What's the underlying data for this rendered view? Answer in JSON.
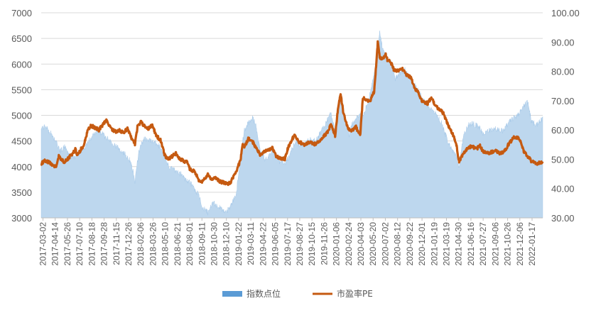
{
  "chart_data": {
    "type": "area-line",
    "legend": [
      {
        "name": "指数点位",
        "color": "#5b9bd5",
        "kind": "area"
      },
      {
        "name": "市盈率PE",
        "color": "#c55a11",
        "kind": "line"
      }
    ],
    "legend_position": "bottom",
    "grid": "horizontal",
    "y_left": {
      "min": 3000,
      "max": 7000,
      "step": 500,
      "ticks": [
        "3000",
        "3500",
        "4000",
        "4500",
        "5000",
        "5500",
        "6000",
        "6500",
        "7000"
      ]
    },
    "y_right": {
      "min": 30,
      "max": 100,
      "step": 10,
      "ticks": [
        "30.00",
        "40.00",
        "50.00",
        "60.00",
        "70.00",
        "80.00",
        "90.00",
        "100.00"
      ]
    },
    "x_start": "2017-03-02",
    "x_end": "2022-02-28",
    "x_labels": [
      "2017-03-02",
      "2017-04-14",
      "2017-05-26",
      "2017-07-10",
      "2017-08-18",
      "2017-09-28",
      "2017-11-15",
      "2017-12-26",
      "2018-02-06",
      "2018-03-26",
      "2018-05-10",
      "2018-06-21",
      "2018-08-01",
      "2018-09-11",
      "2018-10-30",
      "2018-12-10",
      "2019-01-22",
      "2019-03-11",
      "2019-04-22",
      "2019-06-05",
      "2019-07-17",
      "2019-08-27",
      "2019-10-15",
      "2019-11-26",
      "2020-01-06",
      "2020-02-24",
      "2020-04-03",
      "2020-05-20",
      "2020-07-02",
      "2020-08-12",
      "2020-09-22",
      "2020-12-01",
      "2021-01-19",
      "2021-03-19",
      "2021-04-30",
      "2021-06-16",
      "2021-07-27",
      "2021-09-06",
      "2021-10-26",
      "2021-12-06",
      "2022-01-17"
    ],
    "index_series": [
      [
        "2017-03-02",
        4750
      ],
      [
        "2017-03-20",
        4780
      ],
      [
        "2017-04-10",
        4620
      ],
      [
        "2017-04-25",
        4480
      ],
      [
        "2017-05-10",
        4300
      ],
      [
        "2017-05-26",
        4380
      ],
      [
        "2017-06-15",
        4200
      ],
      [
        "2017-07-05",
        4180
      ],
      [
        "2017-07-20",
        4300
      ],
      [
        "2017-08-05",
        4350
      ],
      [
        "2017-08-20",
        4480
      ],
      [
        "2017-09-05",
        4620
      ],
      [
        "2017-09-20",
        4700
      ],
      [
        "2017-10-10",
        4650
      ],
      [
        "2017-10-25",
        4560
      ],
      [
        "2017-11-10",
        4500
      ],
      [
        "2017-11-25",
        4420
      ],
      [
        "2017-12-10",
        4350
      ],
      [
        "2017-12-26",
        4280
      ],
      [
        "2018-01-10",
        4200
      ],
      [
        "2018-01-25",
        4050
      ],
      [
        "2018-02-06",
        3700
      ],
      [
        "2018-02-20",
        4300
      ],
      [
        "2018-03-10",
        4550
      ],
      [
        "2018-03-26",
        4520
      ],
      [
        "2018-04-15",
        4480
      ],
      [
        "2018-05-10",
        4380
      ],
      [
        "2018-05-25",
        4200
      ],
      [
        "2018-06-10",
        4000
      ],
      [
        "2018-06-21",
        3950
      ],
      [
        "2018-07-10",
        3900
      ],
      [
        "2018-07-25",
        3850
      ],
      [
        "2018-08-10",
        3750
      ],
      [
        "2018-08-25",
        3700
      ],
      [
        "2018-09-11",
        3550
      ],
      [
        "2018-09-25",
        3450
      ],
      [
        "2018-10-10",
        3200
      ],
      [
        "2018-10-30",
        3100
      ],
      [
        "2018-11-15",
        3300
      ],
      [
        "2018-11-28",
        3250
      ],
      [
        "2018-12-10",
        3200
      ],
      [
        "2018-12-25",
        3150
      ],
      [
        "2019-01-05",
        3120
      ],
      [
        "2019-01-22",
        3250
      ],
      [
        "2019-02-10",
        3500
      ],
      [
        "2019-02-25",
        4200
      ],
      [
        "2019-03-11",
        4700
      ],
      [
        "2019-03-25",
        4850
      ],
      [
        "2019-04-10",
        4950
      ],
      [
        "2019-04-22",
        4800
      ],
      [
        "2019-05-08",
        4300
      ],
      [
        "2019-05-25",
        4150
      ],
      [
        "2019-06-05",
        4200
      ],
      [
        "2019-06-20",
        4300
      ],
      [
        "2019-07-05",
        4250
      ],
      [
        "2019-07-17",
        4100
      ],
      [
        "2019-08-05",
        4050
      ],
      [
        "2019-08-20",
        4200
      ],
      [
        "2019-08-27",
        4300
      ],
      [
        "2019-09-15",
        4500
      ],
      [
        "2019-10-01",
        4400
      ],
      [
        "2019-10-15",
        4450
      ],
      [
        "2019-11-05",
        4550
      ],
      [
        "2019-11-26",
        4500
      ],
      [
        "2019-12-15",
        4700
      ],
      [
        "2020-01-06",
        4900
      ],
      [
        "2020-01-20",
        5050
      ],
      [
        "2020-02-04",
        4700
      ],
      [
        "2020-02-24",
        5300
      ],
      [
        "2020-03-10",
        5000
      ],
      [
        "2020-03-25",
        4600
      ],
      [
        "2020-04-03",
        4800
      ],
      [
        "2020-04-20",
        4950
      ],
      [
        "2020-05-05",
        5000
      ],
      [
        "2020-05-20",
        5050
      ],
      [
        "2020-06-05",
        5300
      ],
      [
        "2020-06-20",
        5700
      ],
      [
        "2020-07-02",
        6000
      ],
      [
        "2020-07-15",
        6600
      ],
      [
        "2020-07-25",
        6300
      ],
      [
        "2020-08-12",
        6100
      ],
      [
        "2020-08-30",
        6000
      ],
      [
        "2020-09-10",
        5700
      ],
      [
        "2020-09-22",
        5800
      ],
      [
        "2020-10-15",
        5900
      ],
      [
        "2020-11-05",
        5700
      ],
      [
        "2020-12-01",
        5500
      ],
      [
        "2020-12-20",
        5300
      ],
      [
        "2021-01-05",
        5200
      ],
      [
        "2021-01-19",
        5100
      ],
      [
        "2021-02-10",
        5000
      ],
      [
        "2021-02-25",
        4850
      ],
      [
        "2021-03-19",
        4500
      ],
      [
        "2021-04-05",
        4300
      ],
      [
        "2021-04-20",
        4200
      ],
      [
        "2021-04-30",
        4000
      ],
      [
        "2021-05-15",
        4600
      ],
      [
        "2021-06-01",
        4800
      ],
      [
        "2021-06-16",
        4850
      ],
      [
        "2021-07-01",
        4800
      ],
      [
        "2021-07-15",
        4750
      ],
      [
        "2021-07-27",
        4650
      ],
      [
        "2021-08-15",
        4700
      ],
      [
        "2021-09-06",
        4750
      ],
      [
        "2021-09-25",
        4700
      ],
      [
        "2021-10-10",
        4700
      ],
      [
        "2021-10-26",
        4850
      ],
      [
        "2021-11-15",
        4950
      ],
      [
        "2021-12-06",
        5050
      ],
      [
        "2021-12-20",
        5200
      ],
      [
        "2022-01-05",
        5250
      ],
      [
        "2022-01-17",
        4900
      ],
      [
        "2022-02-05",
        4800
      ],
      [
        "2022-02-28",
        4950
      ]
    ],
    "pe_series": [
      [
        "2017-03-02",
        48.5
      ],
      [
        "2017-03-15",
        49.5
      ],
      [
        "2017-03-30",
        49.0
      ],
      [
        "2017-04-14",
        48.0
      ],
      [
        "2017-04-25",
        47.0
      ],
      [
        "2017-05-05",
        51.0
      ],
      [
        "2017-05-15",
        50.0
      ],
      [
        "2017-05-26",
        49.0
      ],
      [
        "2017-06-10",
        50.5
      ],
      [
        "2017-06-25",
        52.0
      ],
      [
        "2017-07-05",
        53.5
      ],
      [
        "2017-07-10",
        51.0
      ],
      [
        "2017-07-25",
        53.5
      ],
      [
        "2017-08-05",
        55.0
      ],
      [
        "2017-08-18",
        60.0
      ],
      [
        "2017-08-30",
        61.5
      ],
      [
        "2017-09-10",
        61.0
      ],
      [
        "2017-09-28",
        60.0
      ],
      [
        "2017-10-10",
        61.5
      ],
      [
        "2017-10-25",
        63.5
      ],
      [
        "2017-11-05",
        61.5
      ],
      [
        "2017-11-15",
        60.0
      ],
      [
        "2017-11-30",
        59.5
      ],
      [
        "2017-12-10",
        60.0
      ],
      [
        "2017-12-26",
        59.0
      ],
      [
        "2018-01-10",
        60.5
      ],
      [
        "2018-01-20",
        58.0
      ],
      [
        "2018-02-06",
        55.0
      ],
      [
        "2018-02-15",
        61.0
      ],
      [
        "2018-02-28",
        63.0
      ],
      [
        "2018-03-10",
        61.5
      ],
      [
        "2018-03-26",
        60.5
      ],
      [
        "2018-04-10",
        61.5
      ],
      [
        "2018-04-25",
        58.0
      ],
      [
        "2018-05-10",
        56.5
      ],
      [
        "2018-05-25",
        51.5
      ],
      [
        "2018-06-05",
        50.0
      ],
      [
        "2018-06-21",
        51.0
      ],
      [
        "2018-07-05",
        52.0
      ],
      [
        "2018-07-20",
        50.0
      ],
      [
        "2018-08-01",
        49.5
      ],
      [
        "2018-08-15",
        49.0
      ],
      [
        "2018-08-25",
        46.5
      ],
      [
        "2018-09-11",
        46.0
      ],
      [
        "2018-09-25",
        43.0
      ],
      [
        "2018-10-05",
        42.0
      ],
      [
        "2018-10-20",
        43.5
      ],
      [
        "2018-10-30",
        45.0
      ],
      [
        "2018-11-10",
        43.0
      ],
      [
        "2018-11-25",
        43.5
      ],
      [
        "2018-12-10",
        42.5
      ],
      [
        "2018-12-25",
        42.0
      ],
      [
        "2019-01-10",
        41.5
      ],
      [
        "2019-01-22",
        42.5
      ],
      [
        "2019-02-10",
        46.0
      ],
      [
        "2019-02-25",
        50.0
      ],
      [
        "2019-03-05",
        55.0
      ],
      [
        "2019-03-11",
        54.0
      ],
      [
        "2019-03-25",
        57.0
      ],
      [
        "2019-04-10",
        56.0
      ],
      [
        "2019-04-22",
        54.0
      ],
      [
        "2019-05-08",
        51.5
      ],
      [
        "2019-05-20",
        52.5
      ],
      [
        "2019-06-05",
        53.0
      ],
      [
        "2019-06-20",
        54.0
      ],
      [
        "2019-07-05",
        51.0
      ],
      [
        "2019-07-17",
        50.5
      ],
      [
        "2019-08-05",
        50.0
      ],
      [
        "2019-08-15",
        53.5
      ],
      [
        "2019-08-27",
        56.0
      ],
      [
        "2019-09-10",
        58.5
      ],
      [
        "2019-09-25",
        56.0
      ],
      [
        "2019-10-15",
        55.0
      ],
      [
        "2019-11-05",
        56.0
      ],
      [
        "2019-11-26",
        55.0
      ],
      [
        "2019-12-10",
        56.5
      ],
      [
        "2020-01-06",
        59.0
      ],
      [
        "2020-01-20",
        62.0
      ],
      [
        "2020-02-04",
        58.0
      ],
      [
        "2020-02-15",
        68.0
      ],
      [
        "2020-02-24",
        72.0
      ],
      [
        "2020-03-05",
        66.0
      ],
      [
        "2020-03-20",
        61.0
      ],
      [
        "2020-04-03",
        59.5
      ],
      [
        "2020-04-20",
        61.0
      ],
      [
        "2020-05-05",
        58.0
      ],
      [
        "2020-05-15",
        71.0
      ],
      [
        "2020-05-30",
        70.0
      ],
      [
        "2020-06-10",
        70.0
      ],
      [
        "2020-06-25",
        73.0
      ],
      [
        "2020-07-02",
        82.0
      ],
      [
        "2020-07-08",
        90.0
      ],
      [
        "2020-07-15",
        85.0
      ],
      [
        "2020-07-25",
        84.0
      ],
      [
        "2020-08-05",
        86.0
      ],
      [
        "2020-08-12",
        84.0
      ],
      [
        "2020-08-25",
        83.0
      ],
      [
        "2020-09-05",
        80.5
      ],
      [
        "2020-09-22",
        80.0
      ],
      [
        "2020-10-05",
        81.0
      ],
      [
        "2020-10-20",
        79.0
      ],
      [
        "2020-11-05",
        78.0
      ],
      [
        "2020-11-20",
        74.0
      ],
      [
        "2020-12-01",
        73.0
      ],
      [
        "2020-12-15",
        70.0
      ],
      [
        "2021-01-05",
        69.0
      ],
      [
        "2021-01-19",
        71.0
      ],
      [
        "2021-02-05",
        68.0
      ],
      [
        "2021-02-20",
        67.0
      ],
      [
        "2021-03-05",
        65.5
      ],
      [
        "2021-03-19",
        62.0
      ],
      [
        "2021-04-05",
        59.0
      ],
      [
        "2021-04-20",
        55.0
      ],
      [
        "2021-04-30",
        49.0
      ],
      [
        "2021-05-15",
        52.0
      ],
      [
        "2021-06-01",
        54.0
      ],
      [
        "2021-06-16",
        54.5
      ],
      [
        "2021-07-01",
        53.5
      ],
      [
        "2021-07-15",
        54.5
      ],
      [
        "2021-07-27",
        52.5
      ],
      [
        "2021-08-15",
        52.0
      ],
      [
        "2021-09-06",
        53.0
      ],
      [
        "2021-09-25",
        52.0
      ],
      [
        "2021-10-10",
        52.5
      ],
      [
        "2021-10-26",
        55.0
      ],
      [
        "2021-11-15",
        57.5
      ],
      [
        "2021-12-06",
        57.0
      ],
      [
        "2021-12-20",
        53.0
      ],
      [
        "2022-01-05",
        51.0
      ],
      [
        "2022-01-17",
        49.5
      ],
      [
        "2022-02-05",
        48.5
      ],
      [
        "2022-02-28",
        49.0
      ]
    ]
  }
}
